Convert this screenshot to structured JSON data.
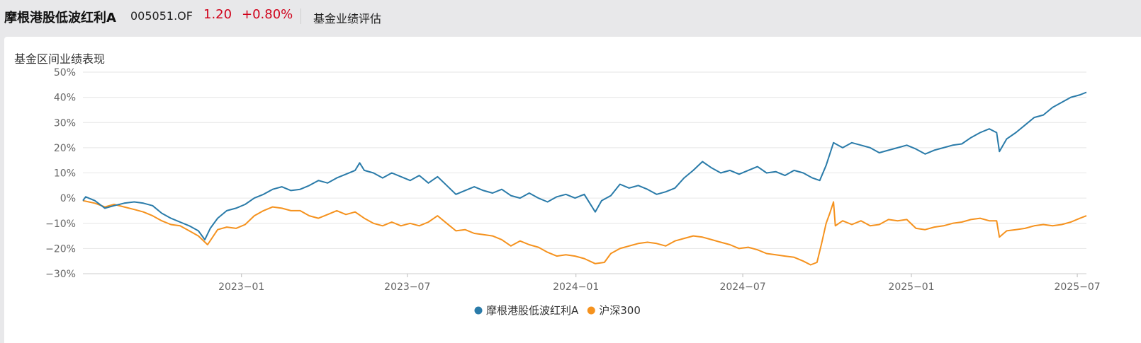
{
  "header": {
    "fund_name": "摩根港股低波红利A",
    "fund_code": "005051.OF",
    "price": "1.20",
    "change": "+0.80%",
    "tab_label": "基金业绩评估"
  },
  "section": {
    "title": "基金区间业绩表现"
  },
  "colors": {
    "fund": "#2a7ba9",
    "index": "#f5921e",
    "negative": "#d0021b",
    "grid": "#e6e6e6"
  },
  "chart_data": {
    "type": "line",
    "title": "",
    "xlabel": "",
    "ylabel": "",
    "x_range": [
      "2022-07-12",
      "2025-07-11"
    ],
    "ylim": [
      -30,
      50
    ],
    "y_unit": "%",
    "y_ticks": [
      "50%",
      "40%",
      "30%",
      "20%",
      "10%",
      "0%",
      "−10%",
      "−20%",
      "−30%"
    ],
    "x_tick_labels": [
      "2023−01",
      "2023−07",
      "2024−01",
      "2024−07",
      "2025−01",
      "2025−07"
    ],
    "legend_position": "bottom-center",
    "grid": true,
    "series": [
      {
        "name": "摩根港股低波红利A",
        "points": [
          [
            "2022-07-12",
            -1
          ],
          [
            "2022-07-15",
            0.5
          ],
          [
            "2022-07-25",
            -1
          ],
          [
            "2022-08-05",
            -4
          ],
          [
            "2022-08-15",
            -3
          ],
          [
            "2022-08-26",
            -2
          ],
          [
            "2022-09-06",
            -1.5
          ],
          [
            "2022-09-16",
            -2
          ],
          [
            "2022-09-26",
            -3
          ],
          [
            "2022-10-06",
            -6
          ],
          [
            "2022-10-16",
            -8
          ],
          [
            "2022-10-26",
            -9.5
          ],
          [
            "2022-11-05",
            -11
          ],
          [
            "2022-11-15",
            -13
          ],
          [
            "2022-11-22",
            -16.5
          ],
          [
            "2022-11-28",
            -12
          ],
          [
            "2022-12-06",
            -8
          ],
          [
            "2022-12-16",
            -5
          ],
          [
            "2022-12-26",
            -4
          ],
          [
            "2023-01-05",
            -2.5
          ],
          [
            "2023-01-15",
            0
          ],
          [
            "2023-01-25",
            1.5
          ],
          [
            "2023-02-04",
            3.5
          ],
          [
            "2023-02-14",
            4.5
          ],
          [
            "2023-02-24",
            3
          ],
          [
            "2023-03-06",
            3.5
          ],
          [
            "2023-03-16",
            5
          ],
          [
            "2023-03-26",
            7
          ],
          [
            "2023-04-05",
            6
          ],
          [
            "2023-04-15",
            8
          ],
          [
            "2023-04-25",
            9.5
          ],
          [
            "2023-05-05",
            11
          ],
          [
            "2023-05-10",
            14
          ],
          [
            "2023-05-15",
            11
          ],
          [
            "2023-05-25",
            10
          ],
          [
            "2023-06-04",
            8
          ],
          [
            "2023-06-14",
            10
          ],
          [
            "2023-06-24",
            8.5
          ],
          [
            "2023-07-04",
            7
          ],
          [
            "2023-07-14",
            9
          ],
          [
            "2023-07-24",
            6
          ],
          [
            "2023-08-03",
            8.5
          ],
          [
            "2023-08-13",
            5
          ],
          [
            "2023-08-23",
            1.5
          ],
          [
            "2023-09-02",
            3
          ],
          [
            "2023-09-12",
            4.5
          ],
          [
            "2023-09-22",
            3
          ],
          [
            "2023-10-02",
            2
          ],
          [
            "2023-10-12",
            3.5
          ],
          [
            "2023-10-22",
            1
          ],
          [
            "2023-11-01",
            0
          ],
          [
            "2023-11-11",
            2
          ],
          [
            "2023-11-21",
            0
          ],
          [
            "2023-12-01",
            -1.5
          ],
          [
            "2023-12-11",
            0.5
          ],
          [
            "2023-12-21",
            1.5
          ],
          [
            "2023-12-31",
            0
          ],
          [
            "2024-01-10",
            1.5
          ],
          [
            "2024-01-22",
            -5.5
          ],
          [
            "2024-01-29",
            -1
          ],
          [
            "2024-02-08",
            1
          ],
          [
            "2024-02-18",
            5.5
          ],
          [
            "2024-02-28",
            4
          ],
          [
            "2024-03-09",
            5
          ],
          [
            "2024-03-19",
            3.5
          ],
          [
            "2024-03-29",
            1.5
          ],
          [
            "2024-04-08",
            2.5
          ],
          [
            "2024-04-18",
            4
          ],
          [
            "2024-04-28",
            8
          ],
          [
            "2024-05-08",
            11
          ],
          [
            "2024-05-18",
            14.5
          ],
          [
            "2024-05-28",
            12
          ],
          [
            "2024-06-07",
            10
          ],
          [
            "2024-06-17",
            11
          ],
          [
            "2024-06-27",
            9.5
          ],
          [
            "2024-07-07",
            11
          ],
          [
            "2024-07-17",
            12.5
          ],
          [
            "2024-07-27",
            10
          ],
          [
            "2024-08-06",
            10.5
          ],
          [
            "2024-08-16",
            9
          ],
          [
            "2024-08-26",
            11
          ],
          [
            "2024-09-05",
            10
          ],
          [
            "2024-09-15",
            8
          ],
          [
            "2024-09-23",
            7
          ],
          [
            "2024-09-30",
            13
          ],
          [
            "2024-10-08",
            22
          ],
          [
            "2024-10-18",
            20
          ],
          [
            "2024-10-28",
            22
          ],
          [
            "2024-11-07",
            21
          ],
          [
            "2024-11-17",
            20
          ],
          [
            "2024-11-27",
            18
          ],
          [
            "2024-12-07",
            19
          ],
          [
            "2024-12-17",
            20
          ],
          [
            "2024-12-27",
            21
          ],
          [
            "2025-01-06",
            19.5
          ],
          [
            "2025-01-16",
            17.5
          ],
          [
            "2025-01-26",
            19
          ],
          [
            "2025-02-05",
            20
          ],
          [
            "2025-02-15",
            21
          ],
          [
            "2025-02-25",
            21.5
          ],
          [
            "2025-03-07",
            24
          ],
          [
            "2025-03-17",
            26
          ],
          [
            "2025-03-27",
            27.5
          ],
          [
            "2025-04-04",
            26
          ],
          [
            "2025-04-07",
            18.5
          ],
          [
            "2025-04-15",
            23.5
          ],
          [
            "2025-04-25",
            26
          ],
          [
            "2025-05-05",
            29
          ],
          [
            "2025-05-15",
            32
          ],
          [
            "2025-05-25",
            33
          ],
          [
            "2025-06-04",
            36
          ],
          [
            "2025-06-14",
            38
          ],
          [
            "2025-06-24",
            40
          ],
          [
            "2025-07-04",
            41
          ],
          [
            "2025-07-11",
            42
          ]
        ]
      },
      {
        "name": "沪深300",
        "points": [
          [
            "2022-07-12",
            -1
          ],
          [
            "2022-07-25",
            -2
          ],
          [
            "2022-08-05",
            -3.5
          ],
          [
            "2022-08-15",
            -2.5
          ],
          [
            "2022-08-26",
            -3.5
          ],
          [
            "2022-09-06",
            -4.5
          ],
          [
            "2022-09-16",
            -5.5
          ],
          [
            "2022-09-26",
            -7
          ],
          [
            "2022-10-06",
            -9
          ],
          [
            "2022-10-16",
            -10.5
          ],
          [
            "2022-10-26",
            -11
          ],
          [
            "2022-11-05",
            -13
          ],
          [
            "2022-11-15",
            -15
          ],
          [
            "2022-11-25",
            -18.5
          ],
          [
            "2022-12-06",
            -12.5
          ],
          [
            "2022-12-16",
            -11.5
          ],
          [
            "2022-12-26",
            -12
          ],
          [
            "2023-01-05",
            -10.5
          ],
          [
            "2023-01-15",
            -7
          ],
          [
            "2023-01-25",
            -5
          ],
          [
            "2023-02-04",
            -3.5
          ],
          [
            "2023-02-14",
            -4
          ],
          [
            "2023-02-24",
            -5
          ],
          [
            "2023-03-06",
            -5
          ],
          [
            "2023-03-16",
            -7
          ],
          [
            "2023-03-26",
            -8
          ],
          [
            "2023-04-05",
            -6.5
          ],
          [
            "2023-04-15",
            -5
          ],
          [
            "2023-04-25",
            -6.5
          ],
          [
            "2023-05-05",
            -5.5
          ],
          [
            "2023-05-15",
            -8
          ],
          [
            "2023-05-25",
            -10
          ],
          [
            "2023-06-04",
            -11
          ],
          [
            "2023-06-14",
            -9.5
          ],
          [
            "2023-06-24",
            -11
          ],
          [
            "2023-07-04",
            -10
          ],
          [
            "2023-07-14",
            -11
          ],
          [
            "2023-07-24",
            -9.5
          ],
          [
            "2023-08-03",
            -7
          ],
          [
            "2023-08-13",
            -10
          ],
          [
            "2023-08-23",
            -13
          ],
          [
            "2023-09-02",
            -12.5
          ],
          [
            "2023-09-12",
            -14
          ],
          [
            "2023-09-22",
            -14.5
          ],
          [
            "2023-10-02",
            -15
          ],
          [
            "2023-10-12",
            -16.5
          ],
          [
            "2023-10-22",
            -19
          ],
          [
            "2023-11-01",
            -17
          ],
          [
            "2023-11-11",
            -18.5
          ],
          [
            "2023-11-21",
            -19.5
          ],
          [
            "2023-12-01",
            -21.5
          ],
          [
            "2023-12-11",
            -23
          ],
          [
            "2023-12-21",
            -22.5
          ],
          [
            "2023-12-31",
            -23
          ],
          [
            "2024-01-10",
            -24
          ],
          [
            "2024-01-22",
            -26
          ],
          [
            "2024-02-01",
            -25.5
          ],
          [
            "2024-02-08",
            -22
          ],
          [
            "2024-02-18",
            -20
          ],
          [
            "2024-02-28",
            -19
          ],
          [
            "2024-03-09",
            -18
          ],
          [
            "2024-03-19",
            -17.5
          ],
          [
            "2024-03-29",
            -18
          ],
          [
            "2024-04-08",
            -19
          ],
          [
            "2024-04-18",
            -17
          ],
          [
            "2024-04-28",
            -16
          ],
          [
            "2024-05-08",
            -15
          ],
          [
            "2024-05-18",
            -15.5
          ],
          [
            "2024-05-28",
            -16.5
          ],
          [
            "2024-06-07",
            -17.5
          ],
          [
            "2024-06-17",
            -18.5
          ],
          [
            "2024-06-27",
            -20
          ],
          [
            "2024-07-07",
            -19.5
          ],
          [
            "2024-07-17",
            -20.5
          ],
          [
            "2024-07-27",
            -22
          ],
          [
            "2024-08-06",
            -22.5
          ],
          [
            "2024-08-16",
            -23
          ],
          [
            "2024-08-26",
            -23.5
          ],
          [
            "2024-09-05",
            -25
          ],
          [
            "2024-09-13",
            -26.5
          ],
          [
            "2024-09-20",
            -25.5
          ],
          [
            "2024-09-25",
            -18
          ],
          [
            "2024-09-30",
            -10
          ],
          [
            "2024-10-04",
            -6
          ],
          [
            "2024-10-08",
            -1.5
          ],
          [
            "2024-10-10",
            -11
          ],
          [
            "2024-10-18",
            -9
          ],
          [
            "2024-10-28",
            -10.5
          ],
          [
            "2024-11-07",
            -9
          ],
          [
            "2024-11-17",
            -11
          ],
          [
            "2024-11-27",
            -10.5
          ],
          [
            "2024-12-07",
            -8.5
          ],
          [
            "2024-12-17",
            -9
          ],
          [
            "2024-12-27",
            -8.5
          ],
          [
            "2025-01-06",
            -12
          ],
          [
            "2025-01-16",
            -12.5
          ],
          [
            "2025-01-26",
            -11.5
          ],
          [
            "2025-02-05",
            -11
          ],
          [
            "2025-02-15",
            -10
          ],
          [
            "2025-02-25",
            -9.5
          ],
          [
            "2025-03-07",
            -8.5
          ],
          [
            "2025-03-17",
            -8
          ],
          [
            "2025-03-27",
            -9
          ],
          [
            "2025-04-04",
            -9
          ],
          [
            "2025-04-07",
            -15.5
          ],
          [
            "2025-04-15",
            -13
          ],
          [
            "2025-04-25",
            -12.5
          ],
          [
            "2025-05-05",
            -12
          ],
          [
            "2025-05-15",
            -11
          ],
          [
            "2025-05-25",
            -10.5
          ],
          [
            "2025-06-04",
            -11
          ],
          [
            "2025-06-14",
            -10.5
          ],
          [
            "2025-06-24",
            -9.5
          ],
          [
            "2025-07-04",
            -8
          ],
          [
            "2025-07-11",
            -7
          ]
        ]
      }
    ]
  }
}
